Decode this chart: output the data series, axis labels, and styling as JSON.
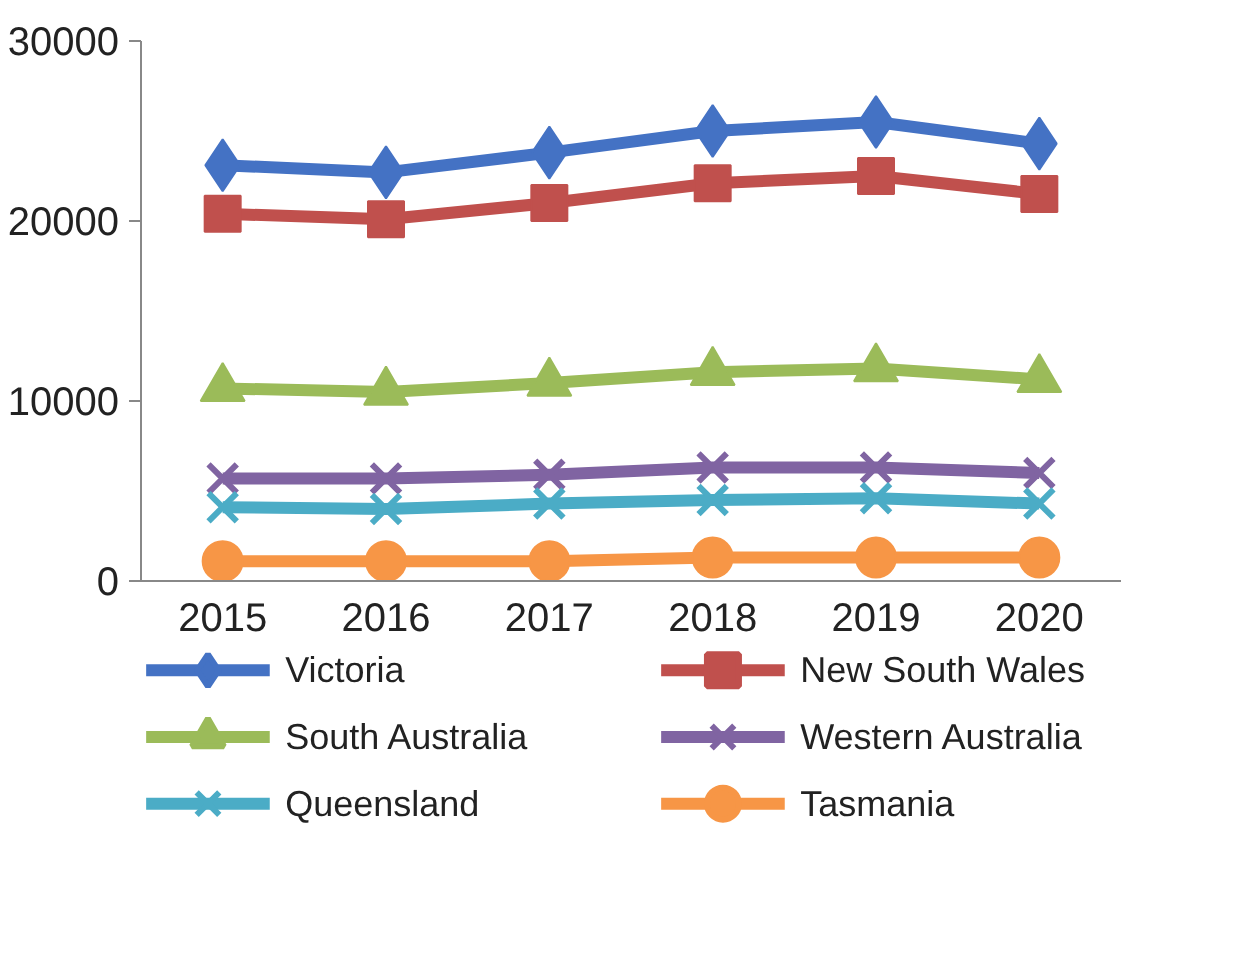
{
  "chart_data": {
    "type": "line",
    "categories": [
      "2015",
      "2016",
      "2017",
      "2018",
      "2019",
      "2020"
    ],
    "ylim": [
      0,
      30000
    ],
    "yticks": [
      0,
      10000,
      20000,
      30000
    ],
    "grid": false,
    "legend": "bottom",
    "series": [
      {
        "name": "Victoria",
        "color": "#4472c4",
        "marker": "diamond",
        "values": [
          23100,
          22700,
          23800,
          25000,
          25500,
          24300
        ]
      },
      {
        "name": "New South Wales",
        "color": "#c0504d",
        "marker": "square",
        "values": [
          20400,
          20100,
          21000,
          22100,
          22500,
          21500
        ]
      },
      {
        "name": "South Australia",
        "color": "#9bbb59",
        "marker": "triangle",
        "values": [
          10700,
          10500,
          11000,
          11600,
          11800,
          11200
        ]
      },
      {
        "name": "Western Australia",
        "color": "#8064a2",
        "marker": "cross",
        "values": [
          5700,
          5700,
          5900,
          6300,
          6300,
          6000
        ]
      },
      {
        "name": "Queensland",
        "color": "#4bacc6",
        "marker": "cross",
        "values": [
          4100,
          4000,
          4300,
          4500,
          4600,
          4300
        ]
      },
      {
        "name": "Tasmania",
        "color": "#f79646",
        "marker": "circle",
        "values": [
          1100,
          1100,
          1100,
          1300,
          1300,
          1300
        ]
      }
    ]
  }
}
